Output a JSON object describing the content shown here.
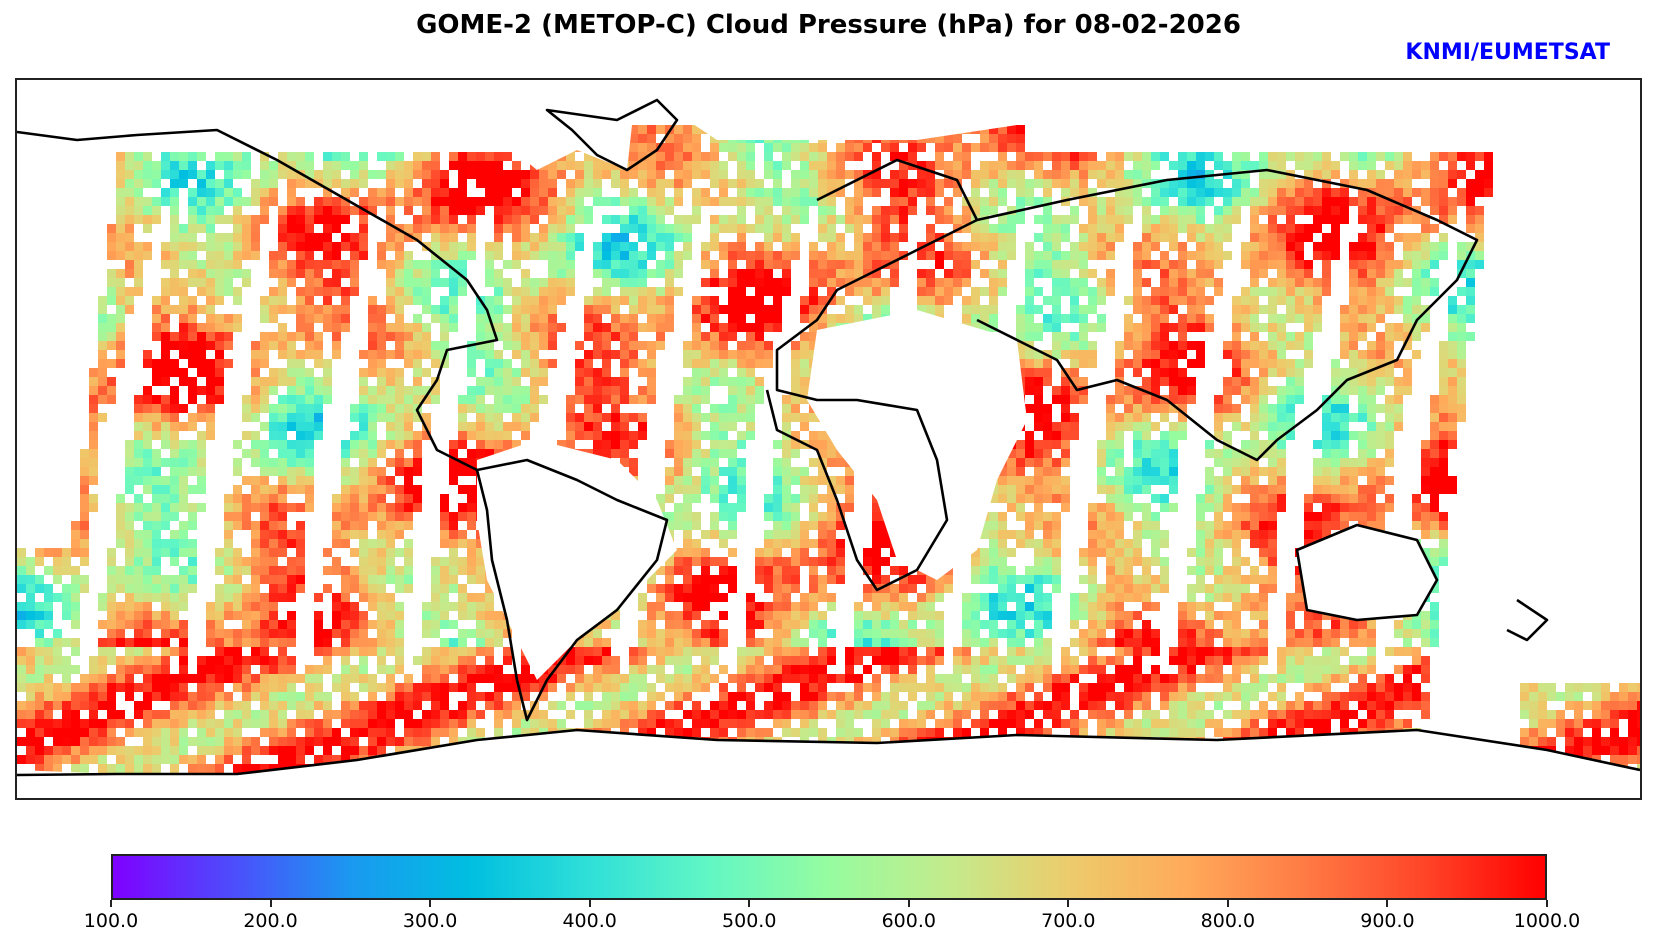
{
  "title": "GOME-2 (METOP-C) Cloud Pressure (hPa) for 08-02-2026",
  "credit": "KNMI/EUMETSAT",
  "colors": {
    "credit": "#0000ff",
    "frame": "#222222",
    "coastline": "#000000",
    "colormap": [
      "#7f00ff",
      "#4d4dfc",
      "#1a99f0",
      "#00bfe0",
      "#30e0d8",
      "#62f7c4",
      "#96fca0",
      "#c3eb8c",
      "#eccc6c",
      "#ffaa5a",
      "#ff7a44",
      "#ff4428",
      "#ff0000"
    ]
  },
  "map": {
    "projection": "plate carree",
    "variable": "Cloud Pressure (hPa)",
    "swath_count": 14
  },
  "colorbar": {
    "min": 100.0,
    "max": 1000.0,
    "ticks": [
      "100.0",
      "200.0",
      "300.0",
      "400.0",
      "500.0",
      "600.0",
      "700.0",
      "800.0",
      "900.0",
      "1000.0"
    ]
  }
}
